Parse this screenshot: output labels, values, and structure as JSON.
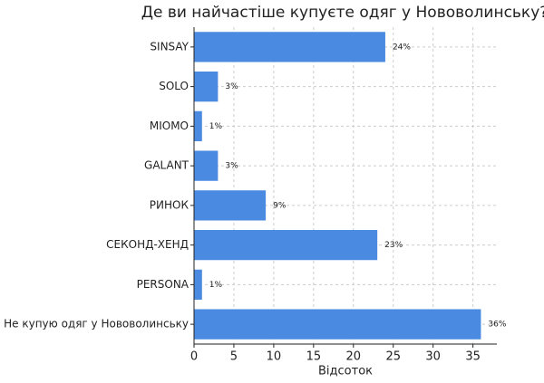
{
  "chart_data": {
    "type": "barh",
    "title": "Де ви найчастіше купуєте одяг у Нововолинську?",
    "xlabel": "Відсоток",
    "categories": [
      "SINSAY",
      "SOLO",
      "MIOMO",
      "GALANT",
      "РИНОК",
      "СЕКОНД-ХЕНД",
      "PERSONA",
      "Не купую одяг у Нововолинську"
    ],
    "values": [
      24,
      3,
      1,
      3,
      9,
      23,
      1,
      36
    ],
    "value_labels": [
      "24%",
      "3%",
      "1%",
      "3%",
      "9%",
      "23%",
      "1%",
      "36%"
    ],
    "color": "#4a8ae0",
    "xlim": [
      0,
      38
    ],
    "xticks": [
      0,
      5,
      10,
      15,
      20,
      25,
      30,
      35
    ],
    "grid": true
  }
}
